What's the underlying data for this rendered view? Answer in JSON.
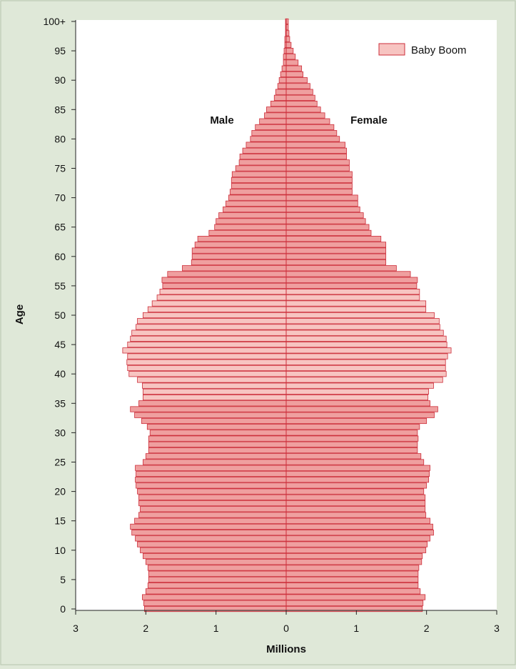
{
  "chart_data": {
    "type": "bar",
    "orientation": "horizontal",
    "subtype": "population-pyramid",
    "title": "",
    "xlabel": "Millions",
    "ylabel": "Age",
    "xlim": [
      -3,
      3
    ],
    "ylim": [
      0,
      100
    ],
    "x_ticks": [
      -3,
      -2,
      -1,
      0,
      1,
      2,
      3
    ],
    "x_tick_labels": [
      "3",
      "2",
      "1",
      "0",
      "1",
      "2",
      "3"
    ],
    "y_ticks": [
      0,
      5,
      10,
      15,
      20,
      25,
      30,
      35,
      40,
      45,
      50,
      55,
      60,
      65,
      70,
      75,
      80,
      85,
      90,
      95,
      100
    ],
    "y_tick_labels": [
      "0",
      "5",
      "10",
      "15",
      "20",
      "25",
      "30",
      "35",
      "40",
      "45",
      "50",
      "55",
      "60",
      "65",
      "70",
      "75",
      "80",
      "85",
      "90",
      "95",
      "100+"
    ],
    "grid": false,
    "legend": {
      "position": "top-right",
      "entries": [
        "Baby Boom"
      ],
      "highlight_age_range": [
        36,
        54
      ]
    },
    "side_labels": {
      "left": "Male",
      "right": "Female"
    },
    "colors": {
      "bar_fill": "#ef9f9f",
      "bar_highlight": "#f7c4c1",
      "bar_stroke": "#cc2e3a",
      "axis": "#222222",
      "background": "#dfe8d8",
      "plot_background": "#ffffff"
    },
    "ages": [
      0,
      1,
      2,
      3,
      4,
      5,
      6,
      7,
      8,
      9,
      10,
      11,
      12,
      13,
      14,
      15,
      16,
      17,
      18,
      19,
      20,
      21,
      22,
      23,
      24,
      25,
      26,
      27,
      28,
      29,
      30,
      31,
      32,
      33,
      34,
      35,
      36,
      37,
      38,
      39,
      40,
      41,
      42,
      43,
      44,
      45,
      46,
      47,
      48,
      49,
      50,
      51,
      52,
      53,
      54,
      55,
      56,
      57,
      58,
      59,
      60,
      61,
      62,
      63,
      64,
      65,
      66,
      67,
      68,
      69,
      70,
      71,
      72,
      73,
      74,
      75,
      76,
      77,
      78,
      79,
      80,
      81,
      82,
      83,
      84,
      85,
      86,
      87,
      88,
      89,
      90,
      91,
      92,
      93,
      94,
      95,
      96,
      97,
      98,
      99,
      100
    ],
    "series": [
      {
        "name": "Male",
        "values": [
          2.02,
          2.03,
          2.05,
          2.0,
          1.97,
          1.96,
          1.96,
          1.97,
          2.0,
          2.04,
          2.08,
          2.12,
          2.15,
          2.2,
          2.22,
          2.16,
          2.1,
          2.08,
          2.1,
          2.1,
          2.12,
          2.14,
          2.15,
          2.14,
          2.15,
          2.04,
          2.0,
          1.96,
          1.96,
          1.96,
          1.94,
          1.98,
          2.06,
          2.16,
          2.22,
          2.1,
          2.04,
          2.04,
          2.05,
          2.12,
          2.24,
          2.26,
          2.27,
          2.26,
          2.33,
          2.26,
          2.22,
          2.2,
          2.14,
          2.12,
          2.04,
          1.97,
          1.91,
          1.84,
          1.8,
          1.76,
          1.77,
          1.69,
          1.48,
          1.35,
          1.34,
          1.34,
          1.3,
          1.26,
          1.1,
          1.02,
          1.0,
          0.96,
          0.9,
          0.86,
          0.82,
          0.8,
          0.78,
          0.78,
          0.77,
          0.72,
          0.67,
          0.66,
          0.62,
          0.57,
          0.51,
          0.49,
          0.44,
          0.38,
          0.31,
          0.28,
          0.22,
          0.17,
          0.15,
          0.12,
          0.1,
          0.08,
          0.06,
          0.04,
          0.04,
          0.03,
          0.02,
          0.02,
          0.01,
          0.01,
          0.01
        ]
      },
      {
        "name": "Female",
        "values": [
          1.94,
          1.95,
          1.98,
          1.91,
          1.88,
          1.88,
          1.88,
          1.89,
          1.93,
          1.94,
          1.99,
          2.01,
          2.05,
          2.1,
          2.09,
          2.05,
          1.99,
          1.98,
          1.98,
          1.98,
          1.96,
          2.0,
          2.03,
          2.04,
          2.05,
          1.96,
          1.92,
          1.87,
          1.87,
          1.88,
          1.87,
          1.9,
          2.0,
          2.11,
          2.16,
          2.05,
          2.02,
          2.03,
          2.1,
          2.23,
          2.28,
          2.27,
          2.27,
          2.3,
          2.35,
          2.29,
          2.28,
          2.24,
          2.19,
          2.18,
          2.11,
          1.99,
          1.99,
          1.9,
          1.9,
          1.86,
          1.87,
          1.77,
          1.57,
          1.42,
          1.42,
          1.42,
          1.42,
          1.35,
          1.21,
          1.18,
          1.13,
          1.1,
          1.05,
          1.02,
          1.02,
          0.94,
          0.94,
          0.94,
          0.94,
          0.9,
          0.9,
          0.86,
          0.86,
          0.84,
          0.76,
          0.72,
          0.68,
          0.62,
          0.55,
          0.49,
          0.44,
          0.41,
          0.38,
          0.34,
          0.3,
          0.24,
          0.22,
          0.17,
          0.13,
          0.1,
          0.07,
          0.05,
          0.04,
          0.03,
          0.03
        ]
      }
    ]
  }
}
